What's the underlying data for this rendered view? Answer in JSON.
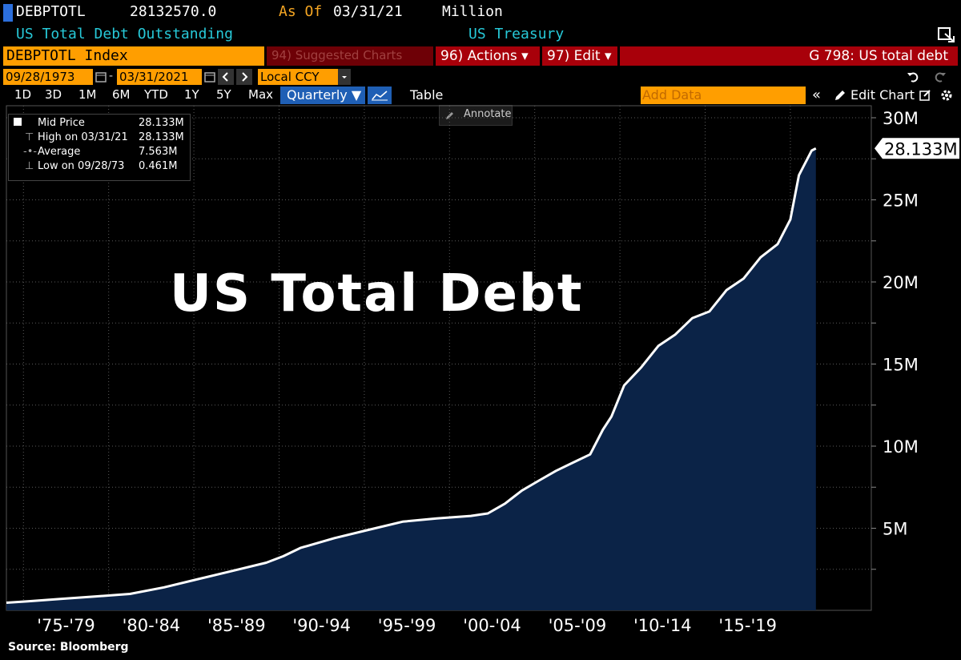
{
  "header": {
    "ticker": "DEBPTOTL",
    "value": "28132570.0",
    "as_of_label": "As Of",
    "as_of_date": "03/31/21",
    "unit": "Million",
    "description": "US Total Debt Outstanding",
    "source": "US Treasury"
  },
  "toolbar": {
    "security": "DEBPTOTL Index",
    "suggested": "94) Suggested Charts",
    "actions": "96) Actions ▾",
    "edit": "97) Edit ▾",
    "chart_title": "G 798: US total debt",
    "start_date": "09/28/1973",
    "end_date": "03/31/2021",
    "currency": "Local CCY",
    "ranges": [
      "1D",
      "3D",
      "1M",
      "6M",
      "YTD",
      "1Y",
      "5Y",
      "Max"
    ],
    "frequency": "Quarterly ▼",
    "table": "Table",
    "add_data_placeholder": "Add Data",
    "edit_chart": "Edit Chart",
    "annotate": "Annotate"
  },
  "legend": {
    "items": [
      {
        "label": "Mid Price",
        "value": "28.133M"
      },
      {
        "label": "High on 03/31/21",
        "value": "28.133M"
      },
      {
        "label": "Average",
        "value": "7.563M"
      },
      {
        "label": "Low on 09/28/73",
        "value": "0.461M"
      }
    ]
  },
  "overlay_title": "US Total Debt",
  "footer": {
    "source": "Source: Bloomberg"
  },
  "colors": {
    "fill": "#0b2347",
    "line": "#ffffff",
    "accent_orange": "#ff9e00",
    "accent_red": "#a8000a",
    "highlight_blue": "#1f5fb5"
  },
  "chart_data": {
    "type": "area",
    "title": "US Total Debt",
    "ylabel": "",
    "xlabel": "",
    "ylim": [
      0,
      30
    ],
    "yticks": [
      "5M",
      "10M",
      "15M",
      "20M",
      "25M",
      "30M"
    ],
    "xticks": [
      "'75-'79",
      "'80-'84",
      "'85-'89",
      "'90-'94",
      "'95-'99",
      "'00-'04",
      "'05-'09",
      "'10-'14",
      "'15-'19"
    ],
    "last_value_label": "28.133M",
    "x": [
      1973.75,
      1975,
      1977,
      1979,
      1981,
      1983,
      1985,
      1987,
      1989,
      1990,
      1991,
      1993,
      1995,
      1997,
      1999,
      2001,
      2002,
      2003,
      2004,
      2005,
      2006,
      2007,
      2008,
      2008.75,
      2009.25,
      2010,
      2011,
      2012,
      2013,
      2014,
      2015,
      2016,
      2017,
      2018,
      2019,
      2019.75,
      2020.25,
      2020.5,
      2020.75,
      2021.0,
      2021.25
    ],
    "values": [
      0.461,
      0.55,
      0.7,
      0.85,
      1.0,
      1.4,
      1.9,
      2.4,
      2.9,
      3.3,
      3.8,
      4.4,
      4.9,
      5.4,
      5.6,
      5.75,
      5.9,
      6.5,
      7.3,
      7.9,
      8.5,
      9.0,
      9.5,
      11.0,
      11.8,
      13.7,
      14.8,
      16.1,
      16.8,
      17.8,
      18.2,
      19.5,
      20.2,
      21.5,
      22.3,
      23.8,
      26.5,
      27.0,
      27.5,
      28.0,
      28.133
    ],
    "series_color": "#ffffff",
    "grid": true
  }
}
